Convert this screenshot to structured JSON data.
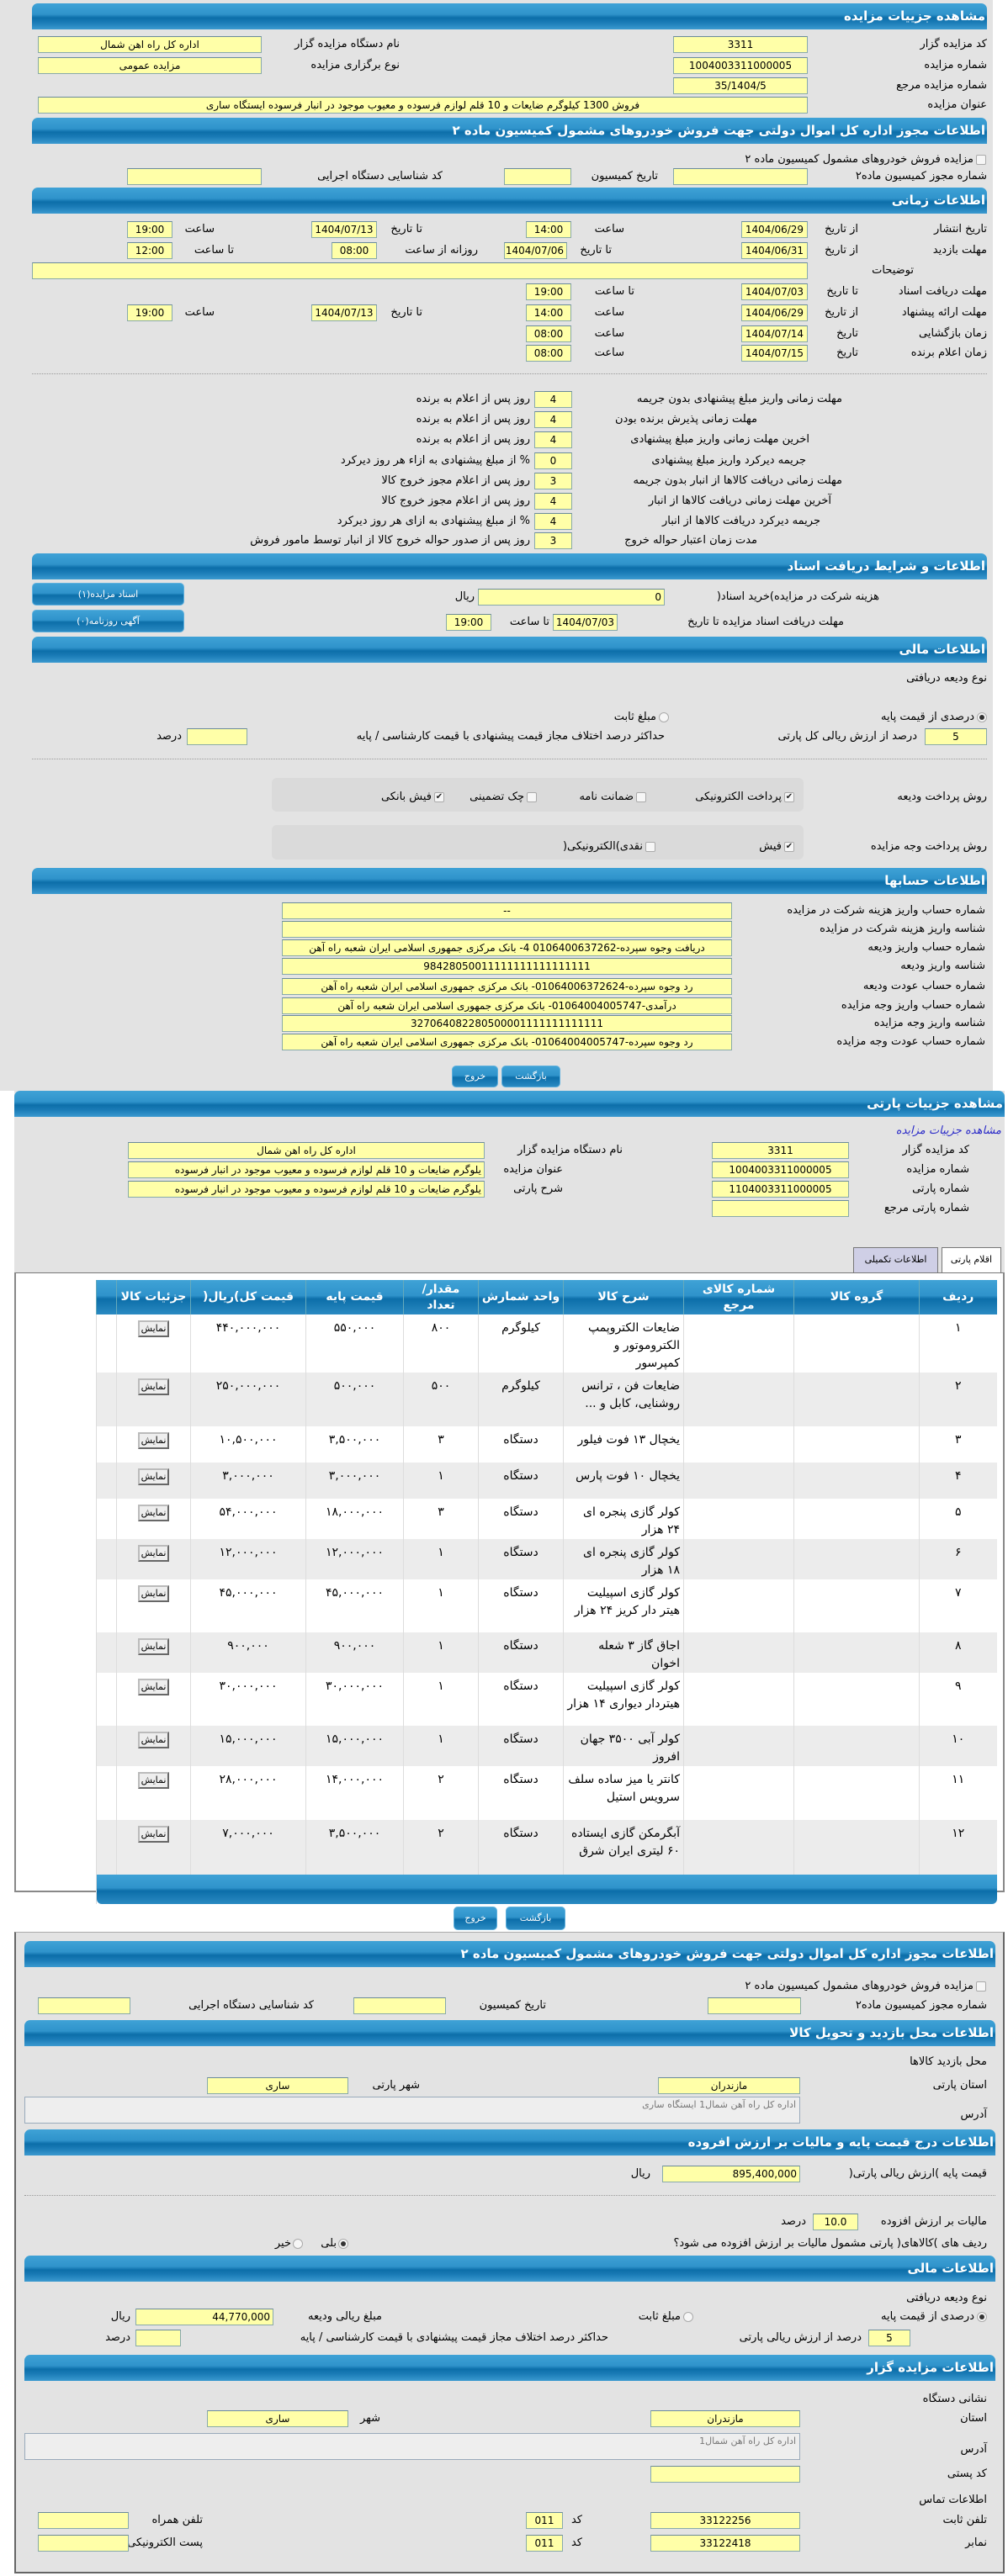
{
  "s1": {
    "header": "مشاهده جزییات مزایده",
    "code_label": "کد مزایده گزار",
    "code": "3311",
    "org_label": "نام دستگاه مزایده گزار",
    "org": "اداره کل راه اهن شمال",
    "num_label": "شماره مزایده",
    "num": "1004003311000005",
    "type_label": "نوع برگزاری مزایده",
    "type": "مزایده عمومی",
    "ref_label": "شماره مزایده مرجع",
    "ref": "35/1404/5",
    "title_label": "عنوان مزایده",
    "title": "فروش 1300 کیلوگرم ضایعات و 10 قلم لوازم فرسوده و معیوب موجود در انبار فرسوده ایستگاه ساری"
  },
  "s2": {
    "header": "اطلاعات مجوز اداره کل اموال دولتی جهت فروش خودروهای مشمول کمیسیون ماده ۲",
    "checkbox_label": "مزایده فروش خودروهای مشمول کمیسیون ماده ۲",
    "checked": false,
    "permit_label": "شماره مجوز کمیسیون ماده۲",
    "permit": "",
    "date_label": "تاریخ کمیسیون",
    "date": "",
    "exec_label": "کد شناسایی دستگاه اجرایی",
    "exec": ""
  },
  "s3": {
    "header": "اطلاعات زمانی",
    "from_word": "از تاریخ",
    "to_word": "تا تاریخ",
    "hour_word": "ساعت",
    "to_hour_word": "تا ساعت",
    "daily_word": "روزانه از ساعت",
    "date_word": "تاریخ",
    "publish": {
      "label": "تاریخ انتشار",
      "from": "1404/06/29",
      "from_time": "14:00",
      "to": "1404/07/13",
      "to_time": "19:00"
    },
    "visit": {
      "label": "مهلت بازدید",
      "from": "1404/06/31",
      "to": "1404/07/06",
      "daily_from": "08:00",
      "until": "12:00"
    },
    "desc_label": "توضیحات",
    "desc": "",
    "docs": {
      "label": "مهلت دریافت اسناد",
      "to": "1404/07/03",
      "to_time": "19:00"
    },
    "offer": {
      "label": "مهلت ارائه پیشنهاد",
      "from": "1404/06/29",
      "from_time": "14:00",
      "to": "1404/07/13",
      "to_time": "19:00"
    },
    "opening": {
      "label": "زمان بازگشایی",
      "date": "1404/07/14",
      "time": "08:00"
    },
    "winner": {
      "label": "زمان اعلام برنده",
      "date": "1404/07/15",
      "time": "08:00"
    }
  },
  "rules": [
    {
      "label": "مهلت زمانی واریز مبلغ پیشنهادی بدون جریمه",
      "value": "4",
      "unit": "روز پس از اعلام به برنده"
    },
    {
      "label": "مهلت زمانی پذیرش برنده بودن",
      "value": "4",
      "unit": "روز پس از اعلام به برنده"
    },
    {
      "label": "اخرین مهلت زمانی واریز مبلغ پیشنهادی",
      "value": "4",
      "unit": "روز پس از اعلام به برنده"
    },
    {
      "label": "جریمه دیرکرد واریز مبلغ پیشنهادی",
      "value": "0",
      "unit": "% از مبلغ پیشنهادی به ازاء هر روز دیرکرد"
    },
    {
      "label": "مهلت زمانی دریافت کالاها از انبار بدون جریمه",
      "value": "3",
      "unit": "روز پس از اعلام مجوز خروج کالا"
    },
    {
      "label": "آخرین مهلت زمانی دریافت کالاها از انبار",
      "value": "4",
      "unit": "روز پس از اعلام مجوز خروج کالا"
    },
    {
      "label": "جریمه دیرکرد دریافت کالاها از انبار",
      "value": "4",
      "unit": "% از مبلغ پیشنهادی به ازای هر روز دیرکرد"
    },
    {
      "label": "مدت زمان اعتبار حواله خروج",
      "value": "3",
      "unit": "روز پس از صدور حواله خروج کالا از انبار توسط مامور فروش"
    }
  ],
  "s5": {
    "header": "اطلاعات و شرایط دریافت اسناد",
    "fee_label": "هزینه شرکت در مزایده)خرید اسناد(",
    "fee": "0",
    "rial": "ریال",
    "deadline_label": "مهلت دریافت اسناد مزایده تا تاریخ",
    "deadline_date": "1404/07/03",
    "to_hour": "تا ساعت",
    "deadline_time": "19:00",
    "docs_button": "اسناد مزایده(۱)",
    "ads_button": "آگهی روزنامه(۰)"
  },
  "s6": {
    "header": "اطلاعات مالی",
    "deposit_type_label": "نوع ودیعه دریافتی",
    "deposit_options": [
      {
        "label": "درصدی از قیمت پایه",
        "selected": true
      },
      {
        "label": "مبلغ ثابت",
        "selected": false
      }
    ],
    "percent": "5",
    "percent_label": "درصد از ارزش ریالی کل پارتی",
    "max_diff_label": "حداکثر درصد اختلاف مجاز قیمت پیشنهادی با قیمت کارشناسی / پایه",
    "max_diff": "",
    "percent_unit": "درصد",
    "pay_deposit_label": "روش پرداخت ودیعه",
    "deposit_methods": [
      {
        "label": "پرداخت الکترونیکی",
        "checked": true
      },
      {
        "label": "ضمانت نامه",
        "checked": false
      },
      {
        "label": "چک تضمینی",
        "checked": false
      },
      {
        "label": "فیش بانکی",
        "checked": true
      }
    ],
    "pay_auction_label": "روش پرداخت وجه مزایده",
    "auction_methods": [
      {
        "label": "فیش",
        "checked": true
      },
      {
        "label": "نقدی)الکترونیکی(",
        "checked": false
      }
    ]
  },
  "accounts": {
    "header": "اطلاعات حسابها",
    "rows": [
      {
        "label": "شماره حساب واریز هزینه شرکت در مزایده",
        "value": "--"
      },
      {
        "label": "شناسه واریز هزینه شرکت در مزایده",
        "value": ""
      },
      {
        "label": "شماره حساب واریز ودیعه",
        "value": "دریافت وجوه سپرده-0106400637262 4- بانک مرکزی جمهوری اسلامی ایران شعبه راه آهن"
      },
      {
        "label": "شناسه واریز ودیعه",
        "value": "98428050011111111111111111"
      },
      {
        "label": "شماره حساب عودت ودیعه",
        "value": "رد وجوه سپرده-01064006372624- بانک مرکزی جمهوری اسلامی ایران شعبه راه آهن"
      },
      {
        "label": "شماره حساب واریز وجه مزایده",
        "value": "درآمدی-01064004005747- بانک مرکزی جمهوری اسلامی ایران شعبه راه آهن"
      },
      {
        "label": "شناسه واریز وجه مزایده",
        "value": "327064082280500001111111111111"
      },
      {
        "label": "شماره حساب عودت وجه مزایده",
        "value": "رد وجوه سپرده-01064004005747- بانک مرکزی جمهوری اسلامی ایران شعبه راه آهن"
      }
    ]
  },
  "buttons": {
    "back": "بازگشت",
    "exit": "خروج"
  },
  "part": {
    "header": "مشاهده جزییات پارتی",
    "link": "مشاهده جزییات مزایده",
    "code_label": "کد مزایده گزار",
    "code": "3311",
    "org_label": "نام دستگاه مزایده گزار",
    "org": "اداره کل راه اهن شمال",
    "num_label": "شماره مزایده",
    "num": "1004003311000005",
    "title_label": "عنوان مزایده",
    "title": "یلوگرم ضایعات و 10 قلم لوازم فرسوده و معیوب موجود در انبار فرسوده",
    "part_num_label": "شماره پارتی",
    "part_num": "1104003311000005",
    "desc_label": "شرح پارتی",
    "desc": "یلوگرم ضایعات و 10 قلم لوازم فرسوده و معیوب موجود در انبار فرسوده",
    "part_ref_label": "شماره پارتی مرجع",
    "part_ref": "",
    "tabs": [
      {
        "label": "اقلام پارتی",
        "active": true
      },
      {
        "label": "اطلاعات تکمیلی",
        "active": false
      }
    ]
  },
  "table": {
    "columns": [
      "ردیف",
      "گروه کالا",
      "شماره کالای مرجع",
      "شرح کالا",
      "واحد شمارش",
      "مقدار/ تعداد",
      "قیمت پایه",
      "قیمت کل)ریال(",
      "جزئیات کالا"
    ],
    "show_button": "نمایش",
    "rows": [
      {
        "row": "۱",
        "group": "",
        "ref": "",
        "desc": "ضایعات الکتروپمپ الکتروموتور و کمپرسور",
        "unit": "کیلوگرم",
        "qty": "۸۰۰",
        "base": "۵۵۰,۰۰۰",
        "total": "۴۴۰,۰۰۰,۰۰۰"
      },
      {
        "row": "۲",
        "group": "",
        "ref": "",
        "desc": "ضایعات فن ، ترانس روشنایی، کابل و ...",
        "unit": "کیلوگرم",
        "qty": "۵۰۰",
        "base": "۵۰۰,۰۰۰",
        "total": "۲۵۰,۰۰۰,۰۰۰"
      },
      {
        "row": "۳",
        "group": "",
        "ref": "",
        "desc": "یخچال ۱۳ فوت فیلور",
        "unit": "دستگاه",
        "qty": "۳",
        "base": "۳,۵۰۰,۰۰۰",
        "total": "۱۰,۵۰۰,۰۰۰"
      },
      {
        "row": "۴",
        "group": "",
        "ref": "",
        "desc": "یخچال ۱۰ فوت پارس",
        "unit": "دستگاه",
        "qty": "۱",
        "base": "۳,۰۰۰,۰۰۰",
        "total": "۳,۰۰۰,۰۰۰"
      },
      {
        "row": "۵",
        "group": "",
        "ref": "",
        "desc": "کولر گازی پنجره ای ۲۴ هزار",
        "unit": "دستگاه",
        "qty": "۳",
        "base": "۱۸,۰۰۰,۰۰۰",
        "total": "۵۴,۰۰۰,۰۰۰"
      },
      {
        "row": "۶",
        "group": "",
        "ref": "",
        "desc": "کولر گازی پنجره ای ۱۸ هزار",
        "unit": "دستگاه",
        "qty": "۱",
        "base": "۱۲,۰۰۰,۰۰۰",
        "total": "۱۲,۰۰۰,۰۰۰"
      },
      {
        "row": "۷",
        "group": "",
        "ref": "",
        "desc": "کولر گازی اسپیلیت هیتر دار کریز ۲۴ هزار",
        "unit": "دستگاه",
        "qty": "۱",
        "base": "۴۵,۰۰۰,۰۰۰",
        "total": "۴۵,۰۰۰,۰۰۰"
      },
      {
        "row": "۸",
        "group": "",
        "ref": "",
        "desc": "اجاق گاز ۳ شعله اخوان",
        "unit": "دستگاه",
        "qty": "۱",
        "base": "۹۰۰,۰۰۰",
        "total": "۹۰۰,۰۰۰"
      },
      {
        "row": "۹",
        "group": "",
        "ref": "",
        "desc": "کولر گازی اسپیلیت هیتردار دیواری ۱۴ هزار",
        "unit": "دستگاه",
        "qty": "۱",
        "base": "۳۰,۰۰۰,۰۰۰",
        "total": "۳۰,۰۰۰,۰۰۰"
      },
      {
        "row": "۱۰",
        "group": "",
        "ref": "",
        "desc": "کولر آبی ۳۵۰۰ جهان افروز",
        "unit": "دستگاه",
        "qty": "۱",
        "base": "۱۵,۰۰۰,۰۰۰",
        "total": "۱۵,۰۰۰,۰۰۰"
      },
      {
        "row": "۱۱",
        "group": "",
        "ref": "",
        "desc": "کانتر یا میز ساده سلف سرویس استیل",
        "unit": "دستگاه",
        "qty": "۲",
        "base": "۱۴,۰۰۰,۰۰۰",
        "total": "۲۸,۰۰۰,۰۰۰"
      },
      {
        "row": "۱۲",
        "group": "",
        "ref": "",
        "desc": "آبگرمکن گازی ایستاده ۶۰ لیتری ایران شرق",
        "unit": "دستگاه",
        "qty": "۲",
        "base": "۳,۵۰۰,۰۰۰",
        "total": "۷,۰۰۰,۰۰۰"
      }
    ]
  },
  "p3": {
    "commission": {
      "header": "اطلاعات مجوز اداره کل اموال دولتی جهت فروش خودروهای مشمول کمیسیون ماده ۲",
      "checkbox_label": "مزایده فروش خودروهای مشمول کمیسیون ماده ۲",
      "checked": false,
      "permit_label": "شماره مجوز کمیسیون ماده۲",
      "permit": "",
      "date_label": "تاریخ کمیسیون",
      "date": "",
      "exec_label": "کد شناسایی دستگاه اجرایی",
      "exec": ""
    },
    "location": {
      "header": "اطلاعات محل بازدید و تحویل کالا",
      "place_label": "محل بازدید کالاها",
      "province_label": "استان پارتی",
      "province": "مازندران",
      "city_label": "شهر پارتی",
      "city": "ساری",
      "address_label": "آدرس",
      "address": "اداره کل راه آهن شمال1 ایستگاه ساری"
    },
    "price": {
      "header": "اطلاعات درج قیمت پایه و مالیات بر ارزش افروده",
      "base_label": "قیمت پایه )ارزش ریالی پارتی(",
      "base": "895,400,000",
      "rial": "ریال",
      "vat_label": "مالیات بر ارزش افزوده",
      "vat": "10.0",
      "vat_unit": "درصد",
      "vat_question": "ردیف های )کالاهای( پارتی مشمول مالیات بر ارزش افزوده می شود؟",
      "vat_options": [
        {
          "label": "بلی",
          "selected": true
        },
        {
          "label": "خیر",
          "selected": false
        }
      ]
    },
    "finance": {
      "header": "اطلاعات مالی",
      "deposit_type_label": "نوع ودیعه دریافتی",
      "deposit_options": [
        {
          "label": "درصدی از قیمت پایه",
          "selected": true
        },
        {
          "label": "مبلغ ثابت",
          "selected": false
        }
      ],
      "amount_label": "مبلغ ریالی ودیعه",
      "amount": "44,770,000",
      "rial": "ریال",
      "percent": "5",
      "percent_label": "درصد از ارزش ریالی پارتی",
      "max_diff_label": "حداکثر درصد اختلاف مجاز قیمت پیشنهادی با قیمت کارشناسی / پایه",
      "max_diff": "",
      "percent_unit": "درصد"
    },
    "seller": {
      "header": "اطلاعات مزایده گزار",
      "address_title": "نشانی دستگاه",
      "province_label": "استان",
      "province": "مازندران",
      "city_label": "شهر",
      "city": "ساری",
      "address_label": "آدرس",
      "address": "اداره کل راه آهن شمال1",
      "postal_label": "کد پستی",
      "postal": "",
      "contact_title": "اطلاعات تماس",
      "phone_label": "تلفن ثابت",
      "phone": "33122256",
      "code_label": "کد",
      "phone_code": "011",
      "mobile_label": "تلفن همراه",
      "mobile": "",
      "fax_label": "نمابر",
      "fax": "33122418",
      "fax_code": "011",
      "email_label": "پست الکترونیکی",
      "email": ""
    }
  },
  "colors": {
    "header_blue": "#0c6ea9",
    "field_yellow": "#ffffa8",
    "panel_gray": "#e3e3e3",
    "link_blue": "#2a2ac8"
  }
}
